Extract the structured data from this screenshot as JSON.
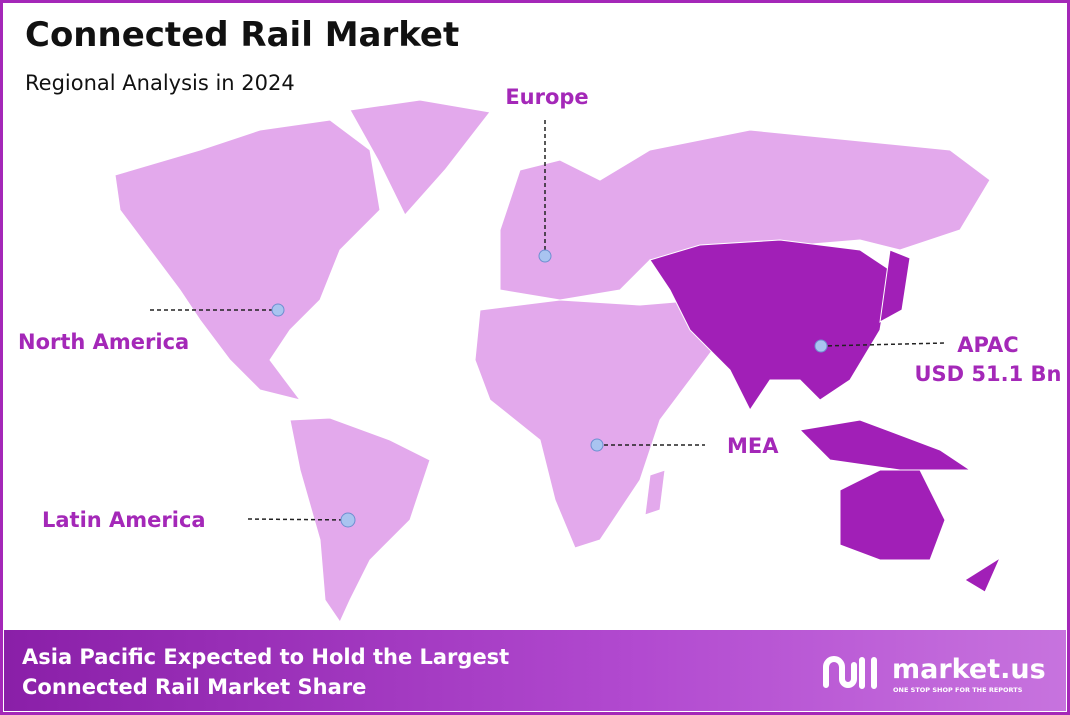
{
  "header": {
    "title": "Connected Rail Market",
    "subtitle": "Regional Analysis in 2024"
  },
  "regions": [
    {
      "label": "Europe"
    },
    {
      "label": "North America"
    },
    {
      "label": "APAC",
      "value": "USD 51.1 Bn"
    },
    {
      "label": "MEA"
    },
    {
      "label": "Latin America"
    }
  ],
  "footer": {
    "lines": [
      "Asia Pacific Expected to Hold the Largest",
      "Connected Rail Market Share"
    ],
    "logo": {
      "name": "market.us",
      "tagline": "ONE STOP SHOP FOR THE REPORTS"
    }
  }
}
